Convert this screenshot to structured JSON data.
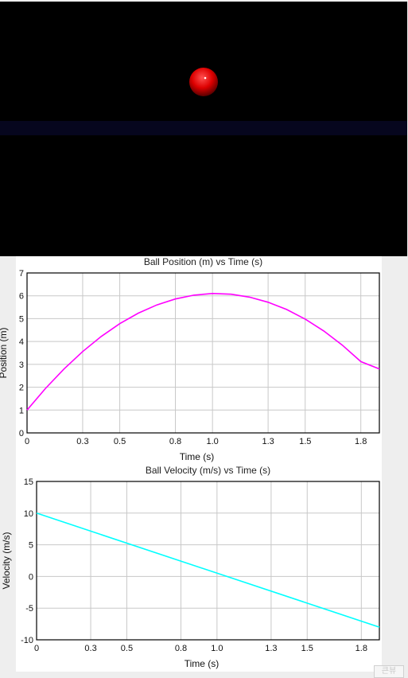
{
  "scene": {
    "background_color": "#000000",
    "floor_color": "#06061e",
    "ball_color": "#dd0000"
  },
  "chart_data": [
    {
      "type": "line",
      "title": "Ball Position (m) vs Time (s)",
      "xlabel": "Time (s)",
      "ylabel": "Position (m)",
      "xlim": [
        0,
        1.9
      ],
      "ylim": [
        0,
        7
      ],
      "x_ticks": [
        "0",
        "0.3",
        "0.5",
        "0.8",
        "1.0",
        "1.3",
        "1.5",
        "1.8"
      ],
      "y_ticks": [
        "0",
        "1",
        "2",
        "3",
        "4",
        "5",
        "6",
        "7"
      ],
      "grid": true,
      "series": [
        {
          "color": "#ff00ff",
          "x": [
            0,
            0.1,
            0.2,
            0.3,
            0.4,
            0.5,
            0.6,
            0.7,
            0.8,
            0.9,
            1.0,
            1.1,
            1.2,
            1.3,
            1.4,
            1.5,
            1.6,
            1.7,
            1.8,
            1.9
          ],
          "y": [
            1.0,
            1.95,
            2.8,
            3.56,
            4.22,
            4.78,
            5.24,
            5.6,
            5.86,
            6.03,
            6.1,
            6.07,
            5.94,
            5.72,
            5.4,
            4.98,
            4.46,
            3.84,
            3.12,
            2.8
          ]
        }
      ]
    },
    {
      "type": "line",
      "title": "Ball Velocity (m/s) vs Time (s)",
      "xlabel": "Time (s)",
      "ylabel": "Velocity (m/s)",
      "xlim": [
        0,
        1.9
      ],
      "ylim": [
        -10,
        15
      ],
      "x_ticks": [
        "0",
        "0.3",
        "0.5",
        "0.8",
        "1.0",
        "1.3",
        "1.5",
        "1.8"
      ],
      "y_ticks": [
        "15",
        "10",
        "5",
        "0",
        "-5",
        "-10"
      ],
      "grid": true,
      "series": [
        {
          "color": "#00ffff",
          "x": [
            0,
            1.9
          ],
          "y": [
            10.0,
            -8.0
          ]
        }
      ]
    }
  ],
  "watermark": "큰뷰"
}
